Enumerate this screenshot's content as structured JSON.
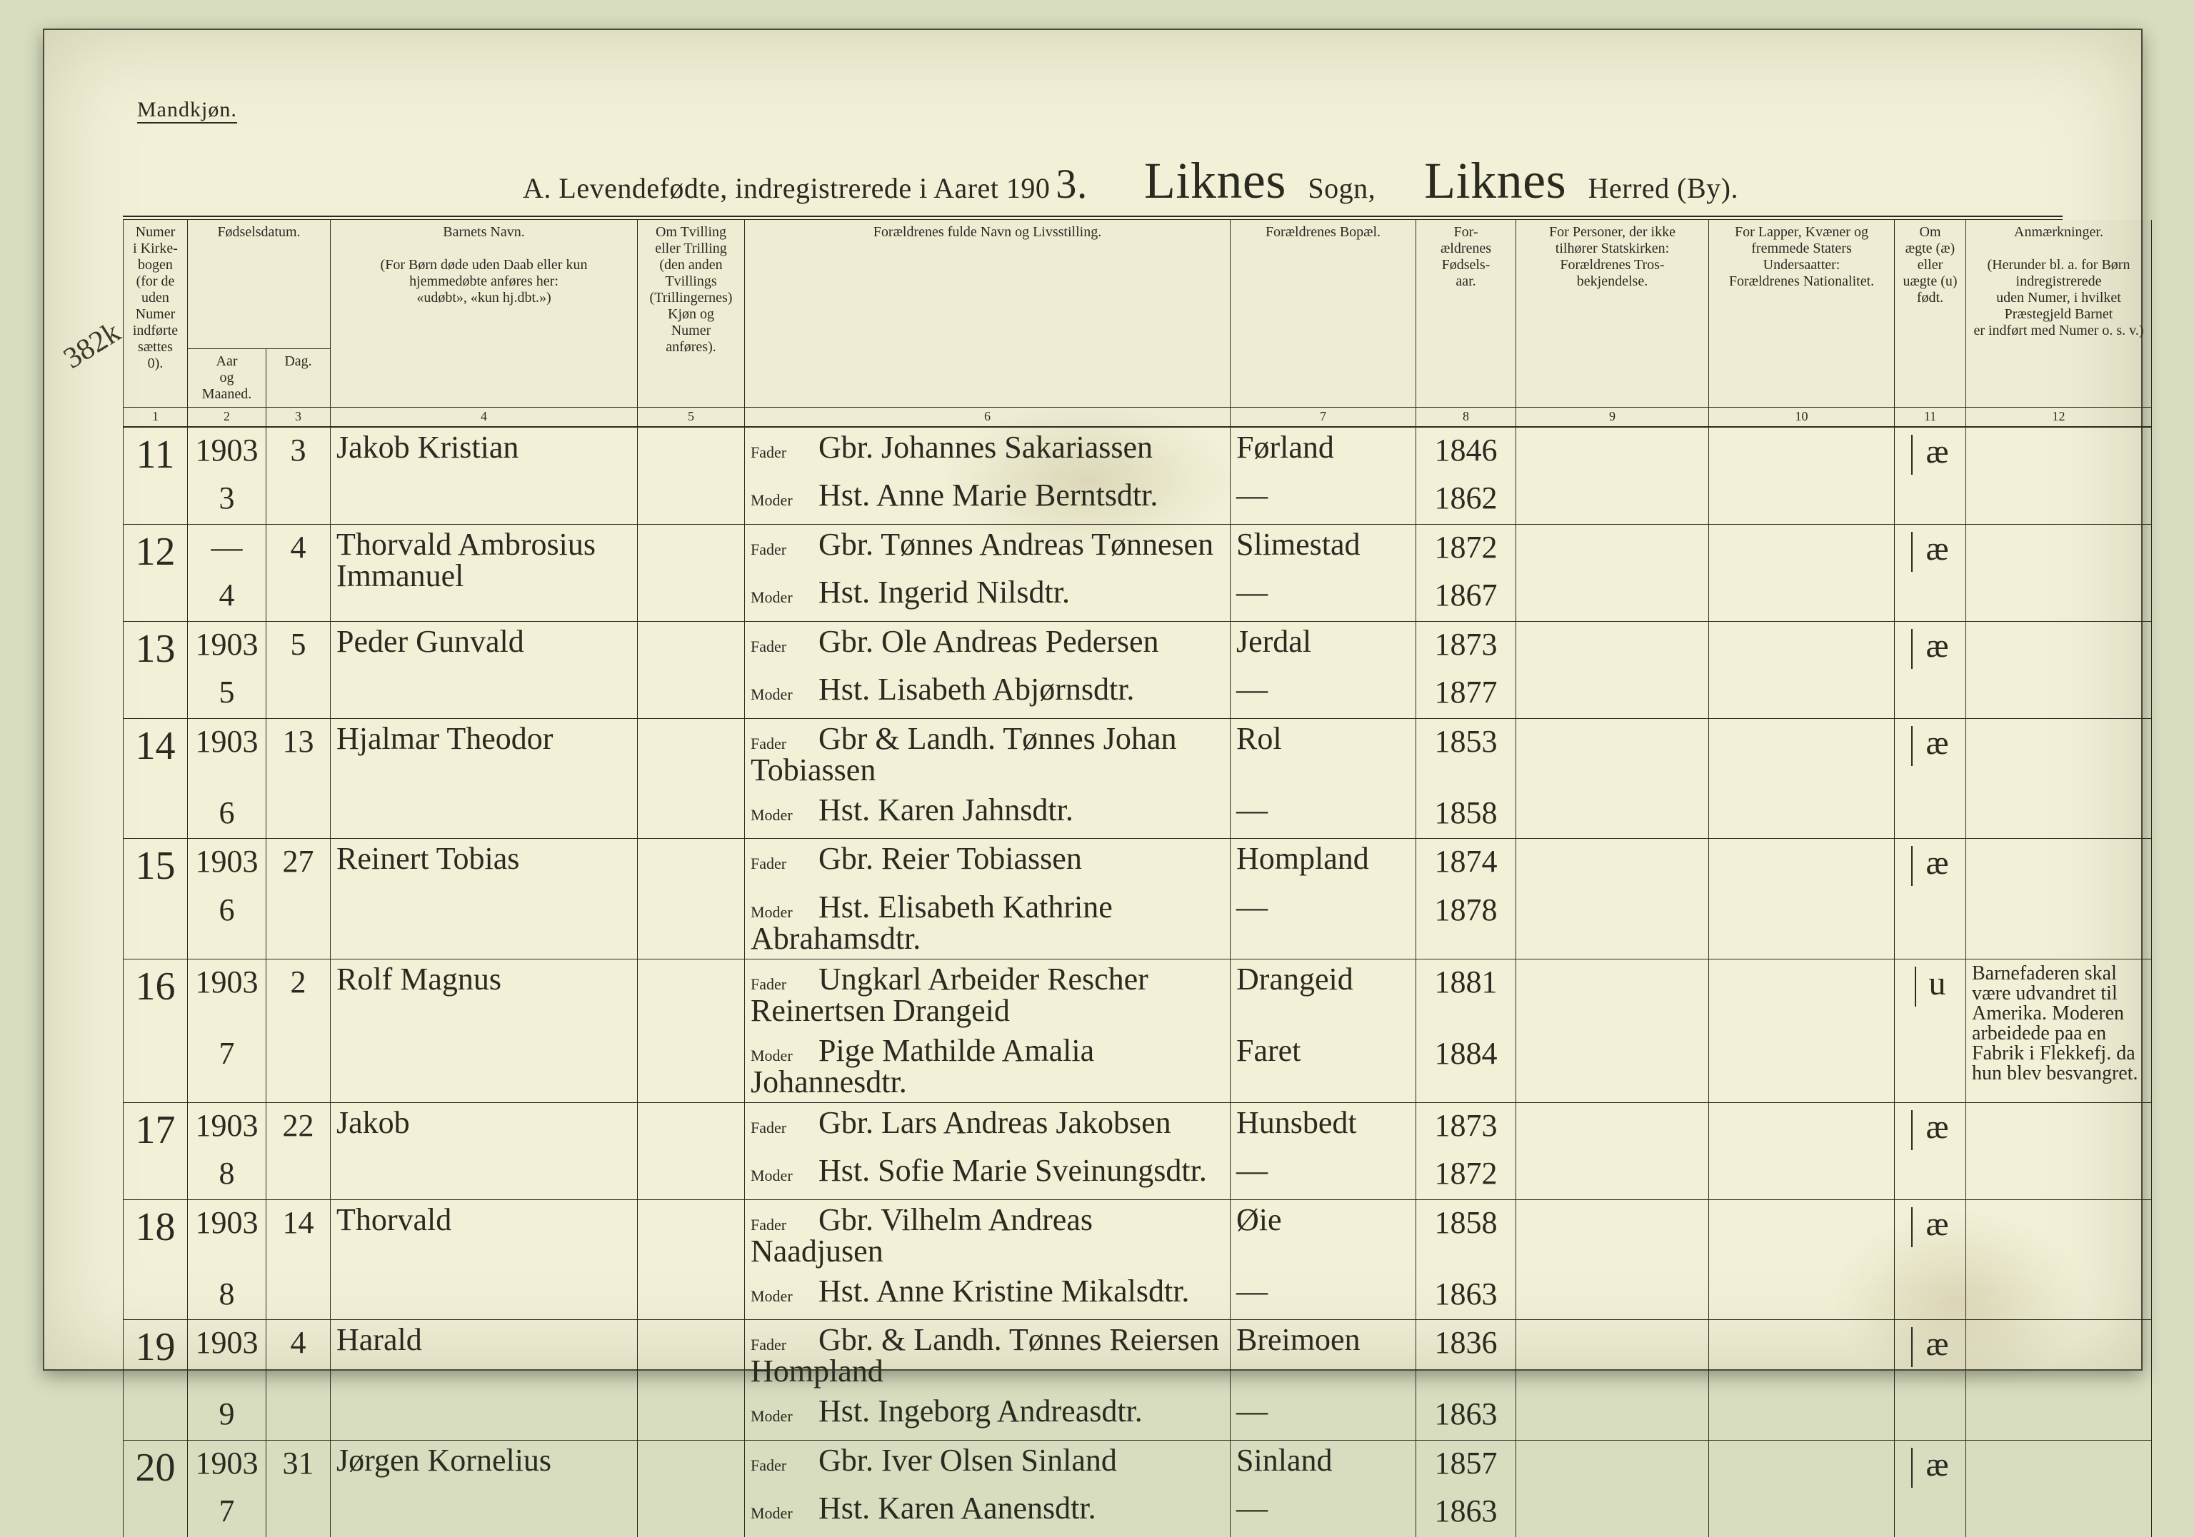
{
  "gender_heading": "Mandkjøn.",
  "title": {
    "prefix": "A.  Levendefødte, indregistrerede i Aaret 190",
    "year_digit": "3.",
    "sogn": "Liknes",
    "sogn_label": "Sogn,",
    "herred": "Liknes",
    "herred_label": "Herred (By)."
  },
  "margin_note": "382k",
  "headers": {
    "c1": "Numer\ni Kirke-\nbogen\n(for de\nuden\nNumer\nindførte\nsættes\n0).",
    "c23_super": "Fødselsdatum.",
    "c2": "Aar\nog\nMaaned.",
    "c3": "Dag.",
    "c4": "Barnets Navn.\n\n(For Børn døde uden Daab eller kun\nhjemmedøbte anføres her:\n«udøbt», «kun hj.dbt.»)",
    "c5": "Om Tvilling\neller Trilling\n(den anden\nTvillings\n(Trillingernes)\nKjøn og\nNumer\nanføres).",
    "c6": "Forældrenes fulde Navn og Livsstilling.",
    "c7": "Forældrenes Bopæl.",
    "c8": "For-\nældrenes\nFødsels-\naar.",
    "c9": "For Personer, der ikke\ntilhører Statskirken:\nForældrenes Tros-\nbekjendelse.",
    "c10": "For Lapper, Kvæner og\nfremmede Staters\nUndersaatter:\nForældrenes Nationalitet.",
    "c11": "Om\nægte (æ)\neller\nuægte (u)\nfødt.",
    "c12": "Anmærkninger.\n\n(Herunder bl. a. for Børn indregistrerede\nuden Numer, i hvilket Præstegjeld Barnet\ner indført med Numer o. s. v.)"
  },
  "col_numbers": [
    "1",
    "2",
    "3",
    "4",
    "5",
    "6",
    "7",
    "8",
    "9",
    "10",
    "11",
    "12"
  ],
  "parent_labels": {
    "father": "Fader",
    "mother": "Moder"
  },
  "ditto": "—",
  "rows": [
    {
      "num": "11",
      "year": "1903",
      "month": "3",
      "day": "3",
      "child": "Jakob Kristian",
      "father": "Gbr. Johannes Sakariassen",
      "mother": "Hst. Anne Marie Berntsdtr.",
      "residence": "Førland",
      "fyear_f": "1846",
      "fyear_m": "1862",
      "leg": "æ",
      "remarks": ""
    },
    {
      "num": "12",
      "year": "—",
      "month": "4",
      "day": "4",
      "child": "Thorvald Ambrosius Immanuel",
      "father": "Gbr. Tønnes Andreas Tønnesen",
      "mother": "Hst. Ingerid Nilsdtr.",
      "residence": "Slimestad",
      "fyear_f": "1872",
      "fyear_m": "1867",
      "leg": "æ",
      "remarks": ""
    },
    {
      "num": "13",
      "year": "1903",
      "month": "5",
      "day": "5",
      "child": "Peder Gunvald",
      "father": "Gbr. Ole Andreas Pedersen",
      "mother": "Hst. Lisabeth Abjørnsdtr.",
      "residence": "Jerdal",
      "fyear_f": "1873",
      "fyear_m": "1877",
      "leg": "æ",
      "remarks": ""
    },
    {
      "num": "14",
      "year": "1903",
      "month": "6",
      "day": "13",
      "child": "Hjalmar Theodor",
      "father": "Gbr & Landh. Tønnes Johan Tobiassen",
      "mother": "Hst. Karen Jahnsdtr.",
      "residence": "Rol",
      "fyear_f": "1853",
      "fyear_m": "1858",
      "leg": "æ",
      "remarks": ""
    },
    {
      "num": "15",
      "year": "1903",
      "month": "6",
      "day": "27",
      "child": "Reinert Tobias",
      "father": "Gbr. Reier Tobiassen",
      "mother": "Hst. Elisabeth Kathrine Abrahamsdtr.",
      "residence": "Hompland",
      "fyear_f": "1874",
      "fyear_m": "1878",
      "leg": "æ",
      "remarks": ""
    },
    {
      "num": "16",
      "year": "1903",
      "month": "7",
      "day": "2",
      "child": "Rolf Magnus",
      "father": "Ungkarl Arbeider Rescher Reinertsen Drangeid",
      "mother": "Pige Mathilde Amalia Johannesdtr.",
      "residence": "Drangeid",
      "residence_m": "Faret",
      "fyear_f": "1881",
      "fyear_m": "1884",
      "leg": "u",
      "remarks": "Barnefaderen skal være udvandret til Amerika. Moderen arbeidede paa en Fabrik i Flekkefj. da hun blev besvangret."
    },
    {
      "num": "17",
      "year": "1903",
      "month": "8",
      "day": "22",
      "child": "Jakob",
      "father": "Gbr. Lars Andreas Jakobsen",
      "mother": "Hst. Sofie Marie Sveinungsdtr.",
      "residence": "Hunsbedt",
      "fyear_f": "1873",
      "fyear_m": "1872",
      "leg": "æ",
      "remarks": ""
    },
    {
      "num": "18",
      "year": "1903",
      "month": "8",
      "day": "14",
      "child": "Thorvald",
      "father": "Gbr. Vilhelm Andreas Naadjusen",
      "mother": "Hst. Anne Kristine Mikalsdtr.",
      "residence": "Øie",
      "fyear_f": "1858",
      "fyear_m": "1863",
      "leg": "æ",
      "remarks": ""
    },
    {
      "num": "19",
      "year": "1903",
      "month": "9",
      "day": "4",
      "child": "Harald",
      "father": "Gbr. & Landh. Tønnes Reiersen Hompland",
      "mother": "Hst. Ingeborg Andreasdtr.",
      "residence": "Breimoen",
      "fyear_f": "1836",
      "fyear_m": "1863",
      "leg": "æ",
      "remarks": ""
    },
    {
      "num": "20",
      "year": "1903",
      "month": "7",
      "day": "31",
      "child": "Jørgen Kornelius",
      "father": "Gbr. Iver Olsen Sinland",
      "mother": "Hst. Karen Aanensdtr.",
      "residence": "Sinland",
      "fyear_f": "1857",
      "fyear_m": "1863",
      "leg": "æ",
      "remarks": ""
    }
  ]
}
